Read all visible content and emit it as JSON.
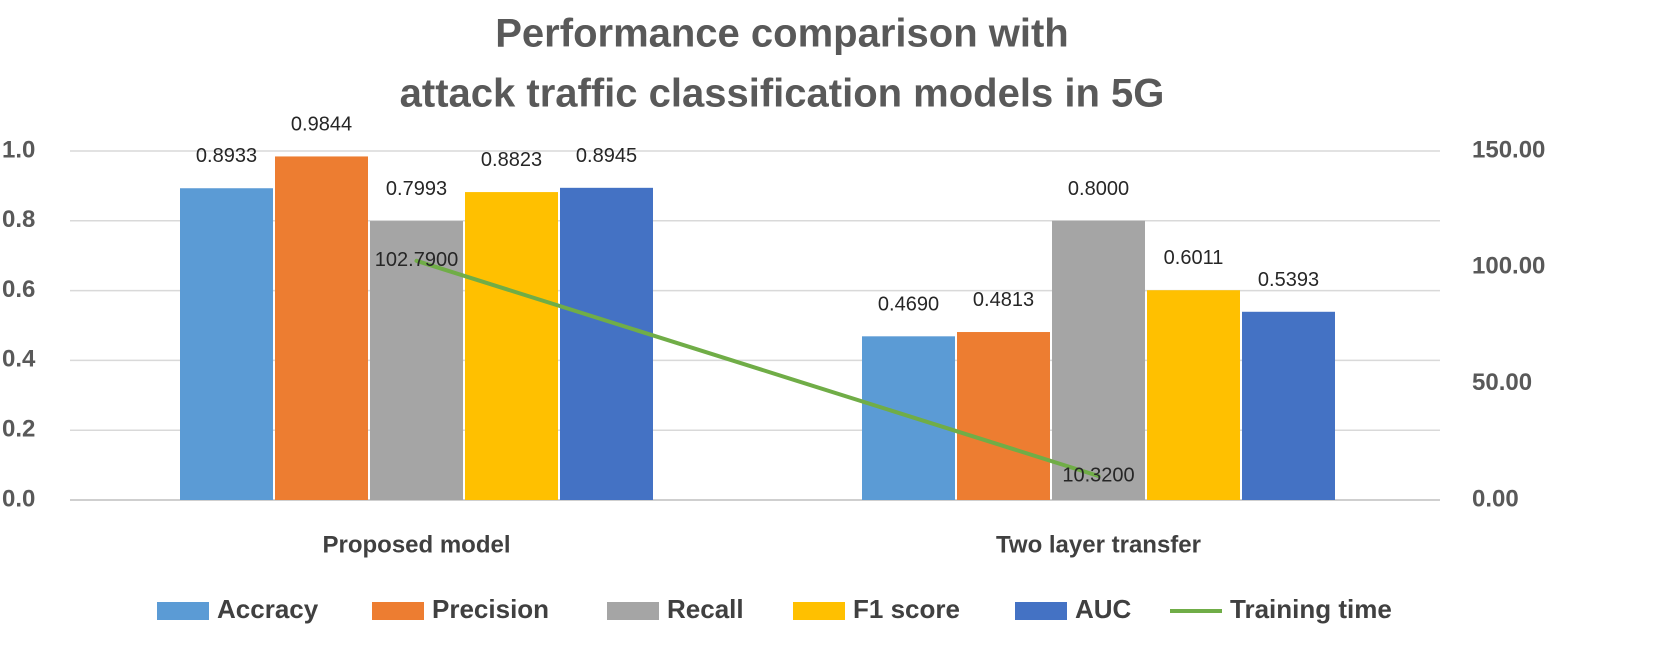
{
  "chart_data": {
    "type": "bar",
    "title": [
      "Performance comparison with",
      "attack traffic classification models in 5G"
    ],
    "categories": [
      "Proposed model",
      "Two layer transfer"
    ],
    "series": [
      {
        "name": "Accracy",
        "color": "#5B9BD5",
        "values": [
          0.8933,
          0.469
        ],
        "labels": [
          "0.8933",
          "0.4690"
        ]
      },
      {
        "name": "Precision",
        "color": "#ED7D31",
        "values": [
          0.9844,
          0.4813
        ],
        "labels": [
          "0.9844",
          "0.4813"
        ]
      },
      {
        "name": "Recall",
        "color": "#A5A5A5",
        "values": [
          0.7993,
          0.8
        ],
        "labels": [
          "0.7993",
          "0.8000"
        ]
      },
      {
        "name": "F1 score",
        "color": "#FFC000",
        "values": [
          0.8823,
          0.6011
        ],
        "labels": [
          "0.8823",
          "0.6011"
        ]
      },
      {
        "name": "AUC",
        "color": "#4472C4",
        "values": [
          0.8945,
          0.5393
        ],
        "labels": [
          "0.8945",
          "0.5393"
        ]
      }
    ],
    "line_series": {
      "name": "Training time",
      "color": "#70AD47",
      "axis": "secondary",
      "values": [
        102.79,
        10.32
      ],
      "labels": [
        "102.7900",
        "10.3200"
      ]
    },
    "y_axis": {
      "ylim": [
        0,
        1.0
      ],
      "ticks": [
        0.0,
        0.2,
        0.4,
        0.6,
        0.8,
        1.0
      ],
      "tick_labels": [
        "0.0",
        "0.2",
        "0.4",
        "0.6",
        "0.8",
        "1.0"
      ]
    },
    "y2_axis": {
      "ylim": [
        0,
        150
      ],
      "ticks": [
        0,
        50,
        100,
        150
      ],
      "tick_labels": [
        "0.00",
        "50.00",
        "100.00",
        "150.00"
      ]
    },
    "grid": true,
    "legend_position": "bottom"
  }
}
